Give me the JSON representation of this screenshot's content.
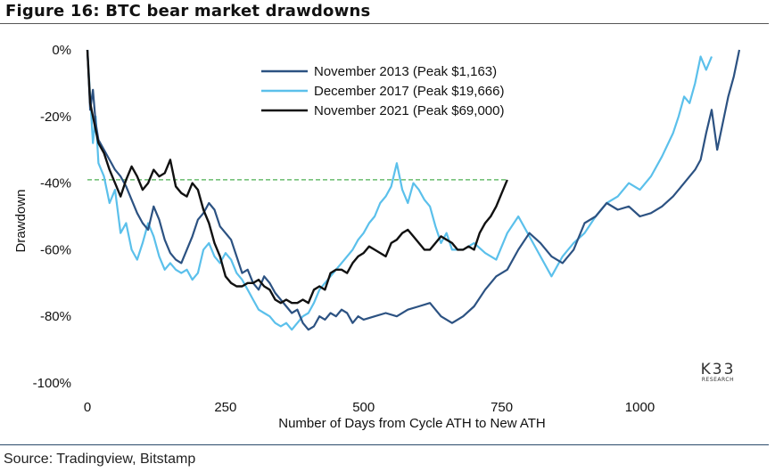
{
  "figure_title": "Figure 16: BTC bear market drawdowns",
  "source": "Source: Tradingview, Bitstamp",
  "logo": {
    "text": "K33",
    "sub": "RESEARCH"
  },
  "chart_data": {
    "type": "line",
    "title": "Figure 16: BTC bear market drawdowns",
    "xlabel": "Number of Days from Cycle ATH to New ATH",
    "ylabel": "Drawdown",
    "xlim": [
      0,
      1180
    ],
    "ylim": [
      -100,
      0
    ],
    "x_ticks": [
      0,
      250,
      500,
      750,
      1000
    ],
    "x_tick_labels": [
      "0",
      "250",
      "500",
      "750",
      "1000"
    ],
    "y_ticks": [
      0,
      -20,
      -40,
      -60,
      -80,
      -100
    ],
    "y_tick_labels": [
      "0%",
      "-20%",
      "-40%",
      "-60%",
      "-80%",
      "-100%"
    ],
    "grid": false,
    "legend_position": "top-center",
    "reference_line": {
      "y": -39,
      "x_end": 760,
      "style": "dashed",
      "color": "#4caf50"
    },
    "series": [
      {
        "name": "November 2013 (Peak $1,163)",
        "color": "#2c5282",
        "points": [
          [
            0,
            0
          ],
          [
            5,
            -18
          ],
          [
            10,
            -12
          ],
          [
            15,
            -22
          ],
          [
            20,
            -27
          ],
          [
            30,
            -30
          ],
          [
            40,
            -33
          ],
          [
            50,
            -36
          ],
          [
            60,
            -38
          ],
          [
            70,
            -41
          ],
          [
            80,
            -45
          ],
          [
            90,
            -49
          ],
          [
            100,
            -52
          ],
          [
            110,
            -54
          ],
          [
            120,
            -47
          ],
          [
            130,
            -51
          ],
          [
            140,
            -57
          ],
          [
            150,
            -61
          ],
          [
            160,
            -63
          ],
          [
            170,
            -64
          ],
          [
            180,
            -60
          ],
          [
            190,
            -56
          ],
          [
            200,
            -51
          ],
          [
            210,
            -49
          ],
          [
            220,
            -46
          ],
          [
            230,
            -48
          ],
          [
            240,
            -53
          ],
          [
            250,
            -55
          ],
          [
            260,
            -57
          ],
          [
            270,
            -62
          ],
          [
            280,
            -67
          ],
          [
            290,
            -66
          ],
          [
            300,
            -70
          ],
          [
            310,
            -72
          ],
          [
            320,
            -68
          ],
          [
            330,
            -70
          ],
          [
            340,
            -73
          ],
          [
            350,
            -75
          ],
          [
            360,
            -77
          ],
          [
            370,
            -79
          ],
          [
            380,
            -78
          ],
          [
            390,
            -82
          ],
          [
            400,
            -84
          ],
          [
            410,
            -83
          ],
          [
            420,
            -80
          ],
          [
            430,
            -81
          ],
          [
            440,
            -79
          ],
          [
            450,
            -80
          ],
          [
            460,
            -78
          ],
          [
            470,
            -79
          ],
          [
            480,
            -82
          ],
          [
            490,
            -80
          ],
          [
            500,
            -81
          ],
          [
            520,
            -80
          ],
          [
            540,
            -79
          ],
          [
            560,
            -80
          ],
          [
            580,
            -78
          ],
          [
            600,
            -77
          ],
          [
            620,
            -76
          ],
          [
            640,
            -80
          ],
          [
            660,
            -82
          ],
          [
            680,
            -80
          ],
          [
            700,
            -77
          ],
          [
            720,
            -72
          ],
          [
            740,
            -68
          ],
          [
            760,
            -66
          ],
          [
            780,
            -60
          ],
          [
            800,
            -55
          ],
          [
            820,
            -58
          ],
          [
            840,
            -62
          ],
          [
            860,
            -64
          ],
          [
            880,
            -60
          ],
          [
            900,
            -52
          ],
          [
            920,
            -50
          ],
          [
            940,
            -46
          ],
          [
            960,
            -48
          ],
          [
            980,
            -47
          ],
          [
            1000,
            -50
          ],
          [
            1020,
            -49
          ],
          [
            1040,
            -47
          ],
          [
            1060,
            -44
          ],
          [
            1080,
            -40
          ],
          [
            1100,
            -36
          ],
          [
            1110,
            -33
          ],
          [
            1120,
            -25
          ],
          [
            1130,
            -18
          ],
          [
            1140,
            -30
          ],
          [
            1150,
            -22
          ],
          [
            1160,
            -14
          ],
          [
            1170,
            -8
          ],
          [
            1180,
            0
          ]
        ]
      },
      {
        "name": "December 2017 (Peak $19,666)",
        "color": "#5bc0eb",
        "points": [
          [
            0,
            0
          ],
          [
            5,
            -14
          ],
          [
            10,
            -28
          ],
          [
            15,
            -20
          ],
          [
            20,
            -34
          ],
          [
            30,
            -38
          ],
          [
            40,
            -46
          ],
          [
            50,
            -42
          ],
          [
            60,
            -55
          ],
          [
            70,
            -52
          ],
          [
            80,
            -60
          ],
          [
            90,
            -63
          ],
          [
            100,
            -58
          ],
          [
            110,
            -52
          ],
          [
            120,
            -56
          ],
          [
            130,
            -62
          ],
          [
            140,
            -66
          ],
          [
            150,
            -64
          ],
          [
            160,
            -66
          ],
          [
            170,
            -67
          ],
          [
            180,
            -66
          ],
          [
            190,
            -69
          ],
          [
            200,
            -67
          ],
          [
            210,
            -60
          ],
          [
            220,
            -58
          ],
          [
            230,
            -62
          ],
          [
            240,
            -64
          ],
          [
            250,
            -61
          ],
          [
            260,
            -63
          ],
          [
            270,
            -67
          ],
          [
            280,
            -69
          ],
          [
            290,
            -72
          ],
          [
            300,
            -75
          ],
          [
            310,
            -78
          ],
          [
            320,
            -79
          ],
          [
            330,
            -80
          ],
          [
            340,
            -82
          ],
          [
            350,
            -83
          ],
          [
            360,
            -82
          ],
          [
            370,
            -84
          ],
          [
            380,
            -82
          ],
          [
            390,
            -80
          ],
          [
            400,
            -79
          ],
          [
            410,
            -76
          ],
          [
            420,
            -72
          ],
          [
            430,
            -70
          ],
          [
            440,
            -68
          ],
          [
            450,
            -66
          ],
          [
            460,
            -64
          ],
          [
            470,
            -62
          ],
          [
            480,
            -60
          ],
          [
            490,
            -57
          ],
          [
            500,
            -55
          ],
          [
            510,
            -52
          ],
          [
            520,
            -50
          ],
          [
            530,
            -46
          ],
          [
            540,
            -44
          ],
          [
            550,
            -41
          ],
          [
            560,
            -34
          ],
          [
            570,
            -42
          ],
          [
            580,
            -46
          ],
          [
            590,
            -40
          ],
          [
            600,
            -42
          ],
          [
            610,
            -45
          ],
          [
            620,
            -47
          ],
          [
            630,
            -53
          ],
          [
            640,
            -58
          ],
          [
            650,
            -55
          ],
          [
            660,
            -60
          ],
          [
            680,
            -60
          ],
          [
            700,
            -58
          ],
          [
            720,
            -61
          ],
          [
            740,
            -63
          ],
          [
            760,
            -55
          ],
          [
            780,
            -50
          ],
          [
            800,
            -56
          ],
          [
            820,
            -62
          ],
          [
            840,
            -68
          ],
          [
            860,
            -62
          ],
          [
            880,
            -58
          ],
          [
            900,
            -55
          ],
          [
            920,
            -50
          ],
          [
            940,
            -46
          ],
          [
            960,
            -44
          ],
          [
            980,
            -40
          ],
          [
            1000,
            -42
          ],
          [
            1020,
            -38
          ],
          [
            1040,
            -32
          ],
          [
            1060,
            -25
          ],
          [
            1070,
            -20
          ],
          [
            1080,
            -14
          ],
          [
            1090,
            -16
          ],
          [
            1100,
            -10
          ],
          [
            1110,
            -2
          ],
          [
            1120,
            -6
          ],
          [
            1130,
            -2
          ]
        ]
      },
      {
        "name": "November 2021 (Peak $69,000)",
        "color": "#111111",
        "points": [
          [
            0,
            0
          ],
          [
            5,
            -16
          ],
          [
            10,
            -20
          ],
          [
            20,
            -28
          ],
          [
            30,
            -31
          ],
          [
            40,
            -36
          ],
          [
            50,
            -40
          ],
          [
            60,
            -44
          ],
          [
            70,
            -39
          ],
          [
            80,
            -35
          ],
          [
            90,
            -38
          ],
          [
            100,
            -42
          ],
          [
            110,
            -40
          ],
          [
            120,
            -36
          ],
          [
            130,
            -38
          ],
          [
            140,
            -37
          ],
          [
            150,
            -33
          ],
          [
            160,
            -41
          ],
          [
            170,
            -43
          ],
          [
            180,
            -44
          ],
          [
            190,
            -40
          ],
          [
            200,
            -42
          ],
          [
            210,
            -48
          ],
          [
            220,
            -52
          ],
          [
            230,
            -58
          ],
          [
            240,
            -62
          ],
          [
            250,
            -68
          ],
          [
            260,
            -70
          ],
          [
            270,
            -71
          ],
          [
            280,
            -71
          ],
          [
            290,
            -70
          ],
          [
            300,
            -70
          ],
          [
            310,
            -69
          ],
          [
            320,
            -71
          ],
          [
            330,
            -72
          ],
          [
            340,
            -75
          ],
          [
            350,
            -76
          ],
          [
            360,
            -75
          ],
          [
            370,
            -76
          ],
          [
            380,
            -76
          ],
          [
            390,
            -75
          ],
          [
            400,
            -76
          ],
          [
            410,
            -72
          ],
          [
            420,
            -71
          ],
          [
            430,
            -72
          ],
          [
            440,
            -67
          ],
          [
            450,
            -66
          ],
          [
            460,
            -66
          ],
          [
            470,
            -67
          ],
          [
            480,
            -64
          ],
          [
            490,
            -62
          ],
          [
            500,
            -61
          ],
          [
            510,
            -59
          ],
          [
            520,
            -60
          ],
          [
            530,
            -61
          ],
          [
            540,
            -62
          ],
          [
            550,
            -58
          ],
          [
            560,
            -57
          ],
          [
            570,
            -55
          ],
          [
            580,
            -54
          ],
          [
            590,
            -56
          ],
          [
            600,
            -58
          ],
          [
            610,
            -60
          ],
          [
            620,
            -60
          ],
          [
            630,
            -58
          ],
          [
            640,
            -56
          ],
          [
            650,
            -57
          ],
          [
            660,
            -58
          ],
          [
            670,
            -60
          ],
          [
            680,
            -60
          ],
          [
            690,
            -59
          ],
          [
            700,
            -60
          ],
          [
            710,
            -55
          ],
          [
            720,
            -52
          ],
          [
            730,
            -50
          ],
          [
            740,
            -47
          ],
          [
            750,
            -43
          ],
          [
            760,
            -39
          ]
        ]
      }
    ]
  }
}
